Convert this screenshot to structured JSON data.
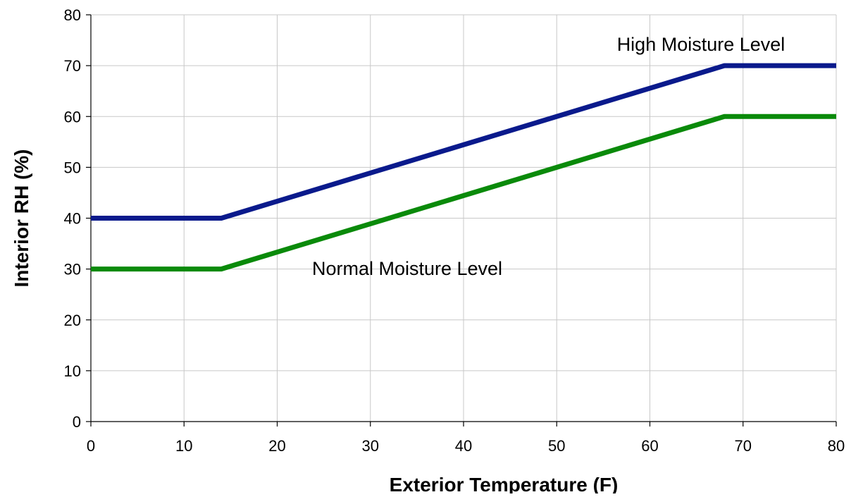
{
  "chart_data": {
    "type": "line",
    "title": "",
    "xlabel": "Exterior Temperature (F)",
    "ylabel": "Interior RH (%)",
    "xlim": [
      0,
      80
    ],
    "ylim": [
      0,
      80
    ],
    "xticks": [
      0,
      10,
      20,
      30,
      40,
      50,
      60,
      70,
      80
    ],
    "yticks": [
      0,
      10,
      20,
      30,
      40,
      50,
      60,
      70,
      80
    ],
    "grid": true,
    "legend": "none",
    "series": [
      {
        "key": "high",
        "color": "#0a1a8c",
        "x": [
          0,
          14,
          68,
          80
        ],
        "y": [
          40,
          40,
          70,
          70
        ]
      },
      {
        "key": "normal",
        "color": "#0a8a0a",
        "x": [
          0,
          14,
          68,
          80
        ],
        "y": [
          30,
          30,
          60,
          60
        ]
      }
    ],
    "annotations": [
      {
        "key": "high",
        "text": "High Moisture Level"
      },
      {
        "key": "normal",
        "text": "Normal Moisture Level"
      }
    ]
  }
}
